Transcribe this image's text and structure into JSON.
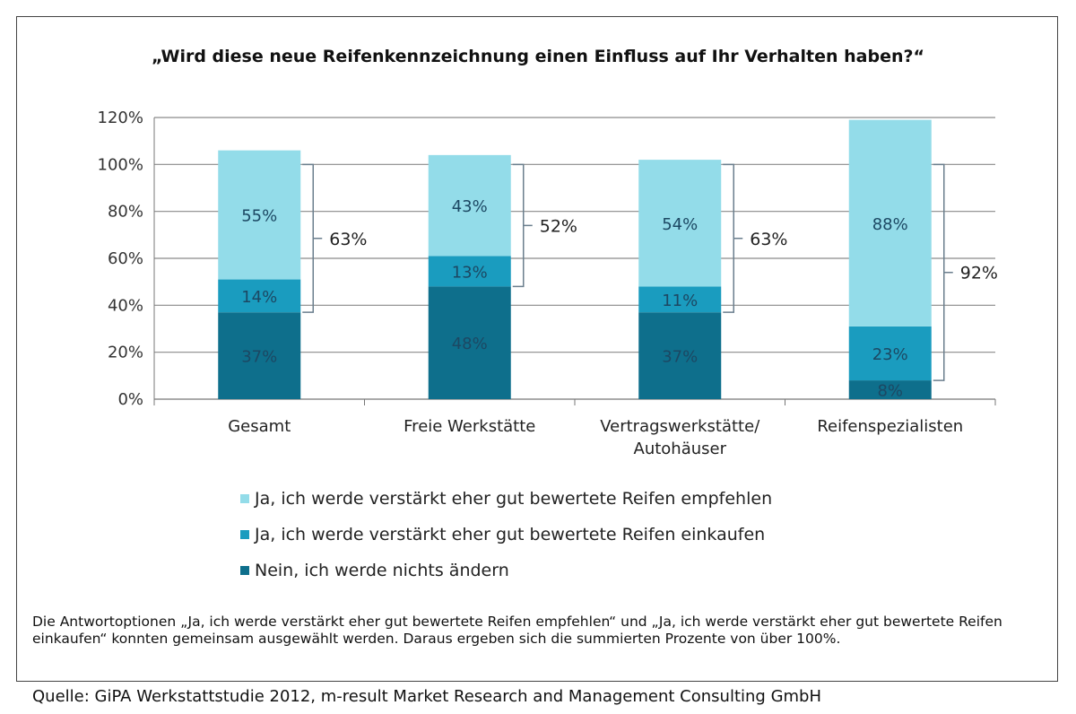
{
  "chart_data": {
    "type": "bar",
    "stacked": true,
    "title": "„Wird diese neue Reifenkennzeichnung  einen Einfluss auf Ihr Verhalten haben?“",
    "categories": [
      "Gesamt",
      "Freie Werkstätte",
      "Vertragswerkstätte/ Autohäuser",
      "Reifenspezialisten"
    ],
    "series": [
      {
        "name": "Nein, ich werde nichts ändern",
        "color": "#0e6f8c",
        "values": [
          37,
          48,
          37,
          8
        ]
      },
      {
        "name": "Ja, ich werde verstärkt eher gut bewertete Reifen einkaufen",
        "color": "#1a9cbf",
        "values": [
          14,
          13,
          11,
          23
        ]
      },
      {
        "name": "Ja, ich werde verstärkt eher gut bewertete Reifen empfehlen",
        "color": "#93dce9",
        "values": [
          55,
          43,
          54,
          88
        ]
      }
    ],
    "bracket_totals": [
      63,
      52,
      63,
      92
    ],
    "yticks": [
      "0%",
      "20%",
      "40%",
      "60%",
      "80%",
      "100%",
      "120%"
    ],
    "ylim": [
      0,
      120
    ],
    "grid": true,
    "legend_position": "bottom"
  },
  "note": "Die Antwortoptionen „Ja, ich werde verstärkt eher gut bewertete Reifen empfehlen“ und „Ja, ich werde verstärkt eher gut bewertete Reifen einkaufen“ konnten gemeinsam ausgewählt werden. Daraus ergeben sich die summierten Prozente von über 100%.",
  "source": "Quelle: GiPA Werkstattstudie 2012, m-result Market Research and Management Consulting GmbH"
}
